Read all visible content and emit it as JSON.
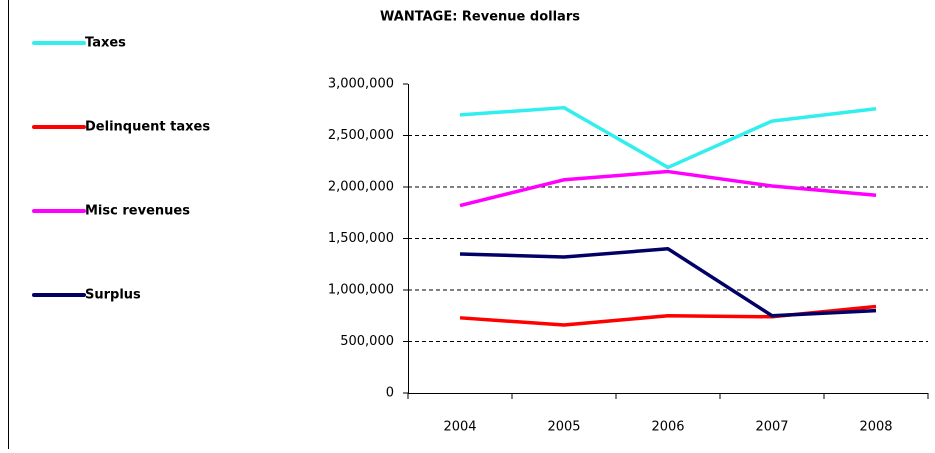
{
  "chart_data": {
    "type": "line",
    "title": "WANTAGE: Revenue dollars",
    "categories": [
      "2004",
      "2005",
      "2006",
      "2007",
      "2008"
    ],
    "series": [
      {
        "name": "Taxes",
        "color": "#33eeee",
        "values": [
          2700000,
          2770000,
          2190000,
          2640000,
          2760000
        ]
      },
      {
        "name": "Delinquent taxes",
        "color": "#ff0000",
        "values": [
          730000,
          660000,
          750000,
          740000,
          840000
        ]
      },
      {
        "name": "Misc revenues",
        "color": "#ff00ff",
        "values": [
          1820000,
          2070000,
          2150000,
          2010000,
          1920000
        ]
      },
      {
        "name": "Surplus",
        "color": "#000066",
        "values": [
          1350000,
          1320000,
          1400000,
          750000,
          800000
        ]
      }
    ],
    "ylim": [
      0,
      3000000
    ],
    "yticks": [
      0,
      {
        "value": 500000,
        "label": "500,000"
      },
      {
        "value": 1000000,
        "label": "1,000,000"
      },
      {
        "value": 1500000,
        "label": "1,500,000"
      },
      {
        "value": 2000000,
        "label": "2,000,000"
      },
      {
        "value": 2500000,
        "label": "2,500,000"
      },
      {
        "value": 3000000,
        "label": "3,000,000"
      }
    ],
    "grid": true,
    "legend": "left"
  }
}
